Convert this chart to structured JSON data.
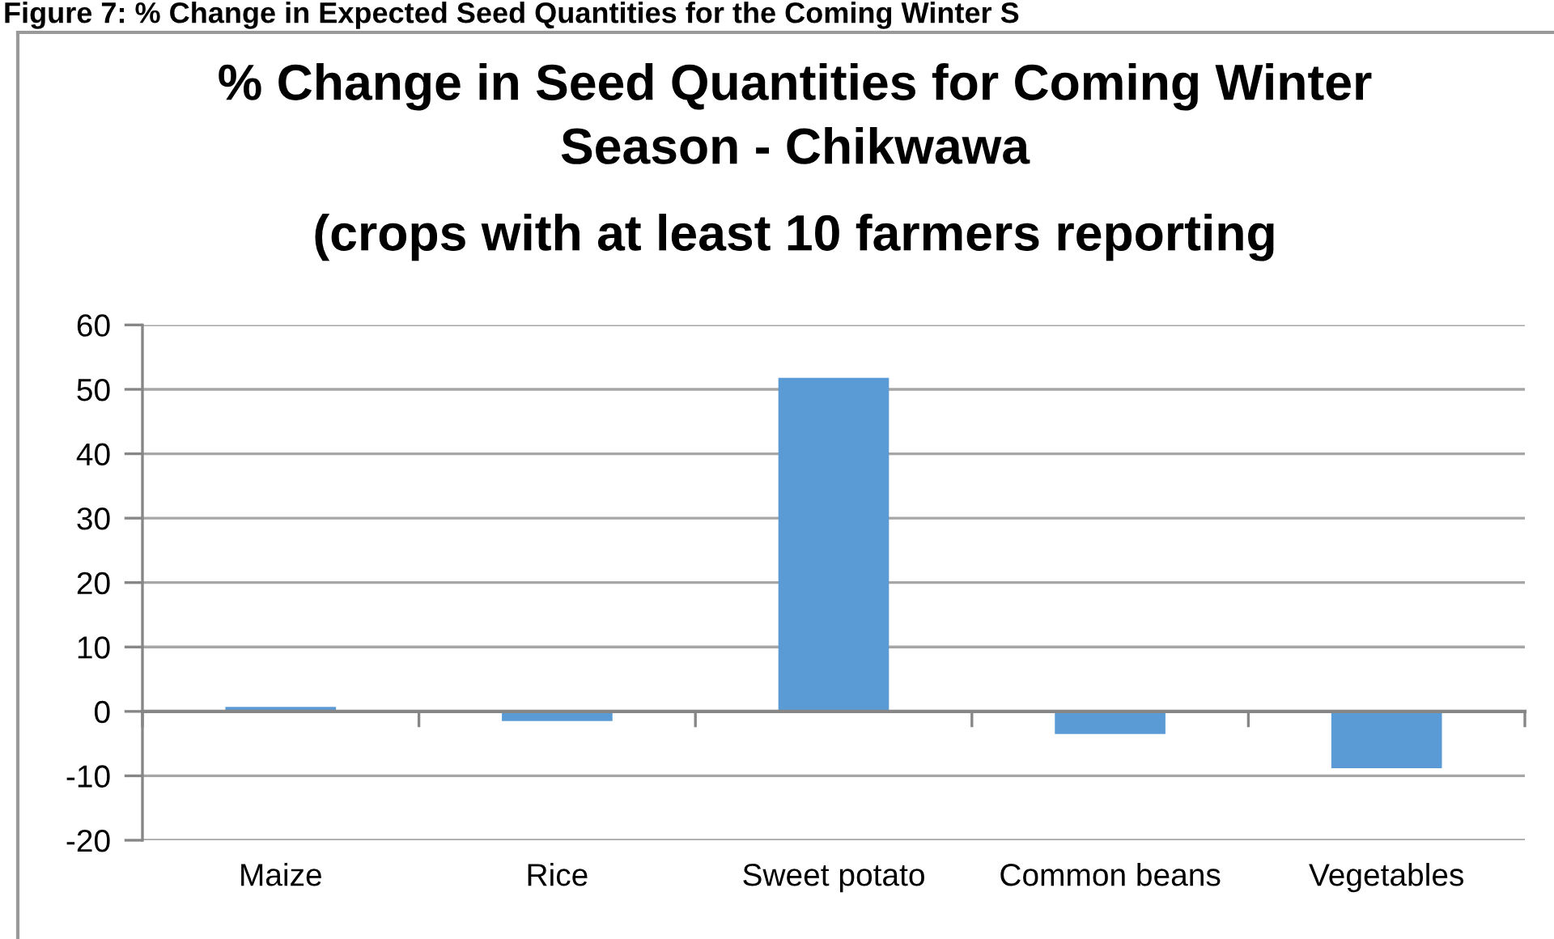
{
  "chart_data": {
    "type": "bar",
    "title": "% Change in Seed Quantities for Coming Winter\nSeason - Chikwawa",
    "subtitle": "(crops with at least 10 farmers reporting",
    "annotations": [
      "Figure 7: % Change in Expected Seed Quantities for the Coming Winter S"
    ],
    "categories": [
      "Maize",
      "Rice",
      "Sweet potato",
      "Common beans",
      "Vegetables"
    ],
    "values": [
      0.7,
      -1.5,
      51.8,
      -3.5,
      -8.8
    ],
    "color": "#5b9bd5",
    "ylim": [
      -20,
      60
    ],
    "yticks": [
      -20,
      -10,
      0,
      10,
      20,
      30,
      40,
      50,
      60
    ],
    "grid": "y",
    "legend": false
  }
}
